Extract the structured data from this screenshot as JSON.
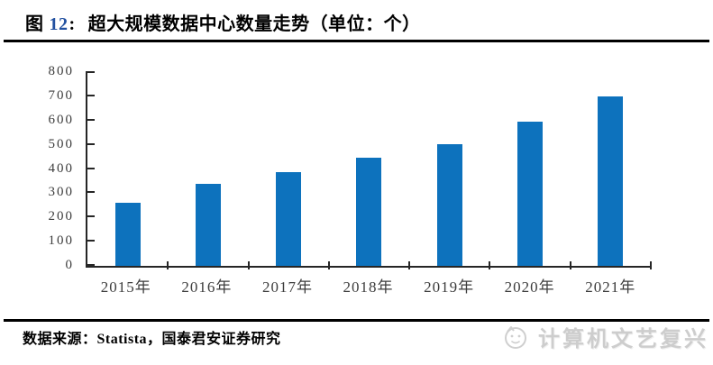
{
  "header": {
    "figure_label": "图",
    "figure_number": "12",
    "separator": ":",
    "title_text": "超大规模数据中心数量走势（单位：个）"
  },
  "chart_data": {
    "type": "bar",
    "title": "超大规模数据中心数量走势",
    "unit": "个",
    "categories": [
      "2015年",
      "2016年",
      "2017年",
      "2018年",
      "2019年",
      "2020年",
      "2021年"
    ],
    "values": [
      259,
      338,
      386,
      448,
      504,
      597,
      700
    ],
    "xlabel": "",
    "ylabel": "",
    "ylim": [
      0,
      800
    ],
    "yticks": [
      0,
      100,
      200,
      300,
      400,
      500,
      600,
      700,
      800
    ],
    "grid": false,
    "legend": "none",
    "bar_color": "#0d72bd",
    "axis_color": "#262626",
    "tick_label_color": "#3d3d3d"
  },
  "footer": {
    "source_text": "数据来源：Statista，国泰君安证券研究",
    "watermark_text": "计算机文艺复兴"
  }
}
